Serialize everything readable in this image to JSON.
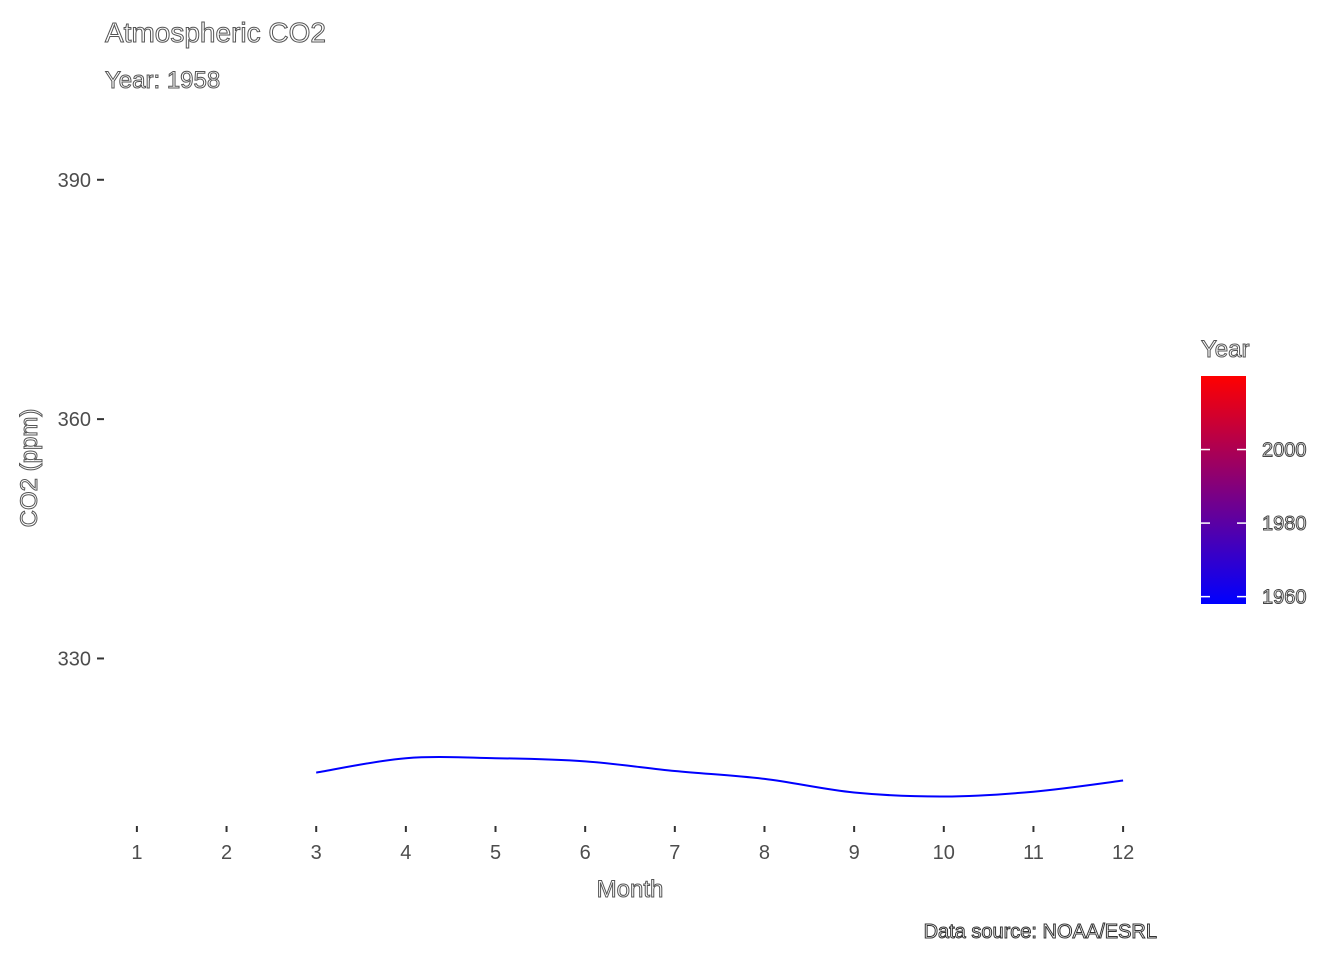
{
  "chart_data": {
    "type": "line",
    "title": "Atmospheric CO2",
    "subtitle": "Year: 1958",
    "xlabel": "Month",
    "ylabel": "CO2 (ppm)",
    "caption": "Data source: NOAA/ESRL",
    "x_ticks": [
      1,
      2,
      3,
      4,
      5,
      6,
      7,
      8,
      9,
      10,
      11,
      12
    ],
    "y_ticks": [
      330,
      360,
      390
    ],
    "xlim": [
      0.7,
      12.3
    ],
    "ylim": [
      308.5,
      400
    ],
    "grid": false,
    "series": [
      {
        "color": "#0000ff",
        "x": [
          3,
          4,
          5,
          6,
          7,
          8,
          9,
          10,
          11,
          12
        ],
        "values": [
          315.7,
          317.5,
          317.5,
          317.1,
          315.9,
          314.9,
          313.2,
          312.7,
          313.3,
          314.7
        ]
      }
    ],
    "legend": {
      "title": "Year",
      "placement": "right",
      "type": "colorbar",
      "range": [
        1958,
        2020
      ],
      "ticks": [
        1960,
        1980,
        2000
      ],
      "color_low": "#0000ff",
      "color_high": "#ff0000"
    }
  }
}
